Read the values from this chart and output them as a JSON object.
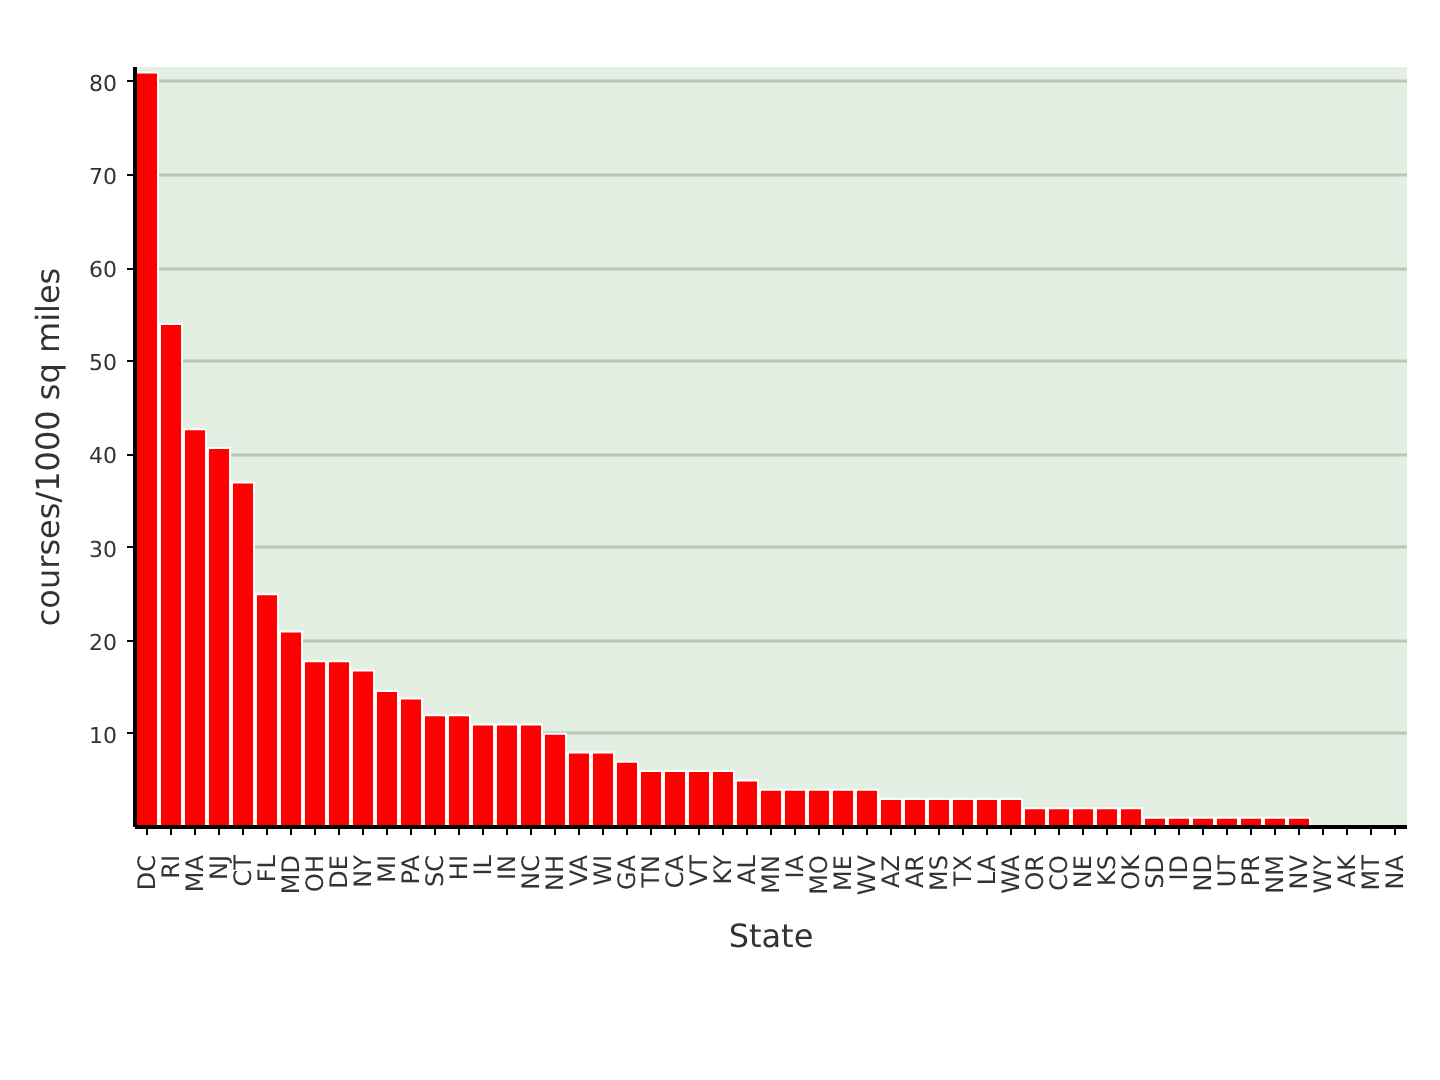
{
  "chart_data": {
    "type": "bar",
    "xlabel": "State",
    "ylabel": "courses/1000 sq miles",
    "categories": [
      "DC",
      "RI",
      "MA",
      "NJ",
      "CT",
      "FL",
      "MD",
      "OH",
      "DE",
      "NY",
      "MI",
      "PA",
      "SC",
      "HI",
      "IL",
      "IN",
      "NC",
      "NH",
      "VA",
      "WI",
      "GA",
      "TN",
      "CA",
      "VT",
      "KY",
      "AL",
      "MN",
      "IA",
      "MO",
      "ME",
      "WV",
      "AZ",
      "AR",
      "MS",
      "TX",
      "LA",
      "WA",
      "OR",
      "CO",
      "NE",
      "KS",
      "OK",
      "SD",
      "ID",
      "ND",
      "UT",
      "PR",
      "NM",
      "NV",
      "WY",
      "AK",
      "MT",
      "NA"
    ],
    "values": [
      81,
      54,
      42.7,
      40.7,
      37,
      25,
      21,
      17.8,
      17.8,
      16.8,
      14.6,
      13.8,
      12,
      12,
      11,
      11,
      11,
      10,
      8,
      8,
      7,
      6,
      6,
      6,
      6,
      5,
      4,
      4,
      4,
      4,
      4,
      3,
      3,
      3,
      3,
      3,
      3,
      2,
      2,
      2,
      2,
      2,
      1,
      1,
      1,
      1,
      1,
      1,
      1,
      null,
      null,
      null,
      null
    ],
    "color": "#ff0000",
    "ylim": [
      0,
      81.6
    ],
    "yticks": [
      10,
      20,
      30,
      40,
      50,
      60,
      70,
      80
    ],
    "grid": "y"
  }
}
